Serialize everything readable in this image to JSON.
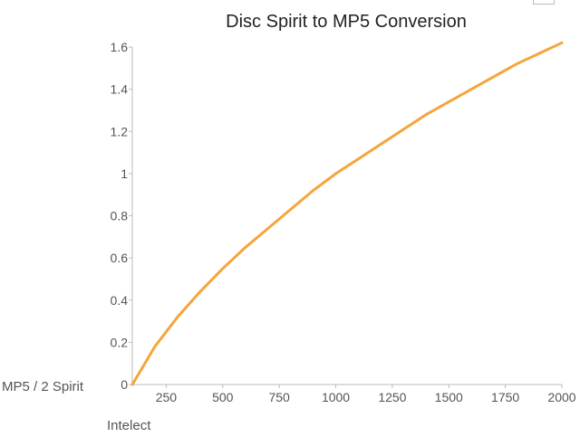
{
  "chart_data": {
    "type": "line",
    "title": "Disc Spirit to MP5 Conversion",
    "xlabel": "Intelect",
    "ylabel": "MP5 / 2 Spirit",
    "xlim": [
      100,
      2000
    ],
    "ylim": [
      0,
      1.6
    ],
    "x_ticks": [
      250,
      500,
      750,
      1000,
      1250,
      1500,
      1750,
      2000
    ],
    "x_tick_labels": [
      "250",
      "500",
      "750",
      "1000",
      "1250",
      "1500",
      "1750",
      "2000"
    ],
    "y_ticks": [
      0,
      0.2,
      0.4,
      0.6,
      0.8,
      1,
      1.2,
      1.4,
      1.6
    ],
    "y_tick_labels": [
      "0",
      "0.2",
      "0.4",
      "0.6",
      "0.8",
      "1",
      "1.2",
      "1.4",
      "1.6"
    ],
    "grid": false,
    "line_color": "#f5a53a",
    "series": [
      {
        "name": "",
        "x": [
          100,
          150,
          200,
          300,
          400,
          500,
          600,
          700,
          800,
          900,
          1000,
          1100,
          1200,
          1300,
          1400,
          1500,
          1600,
          1700,
          1800,
          1900,
          2000
        ],
        "y": [
          0,
          0.09,
          0.18,
          0.32,
          0.44,
          0.55,
          0.65,
          0.74,
          0.83,
          0.92,
          1.0,
          1.07,
          1.14,
          1.21,
          1.28,
          1.34,
          1.4,
          1.46,
          1.52,
          1.57,
          1.62
        ]
      }
    ]
  }
}
